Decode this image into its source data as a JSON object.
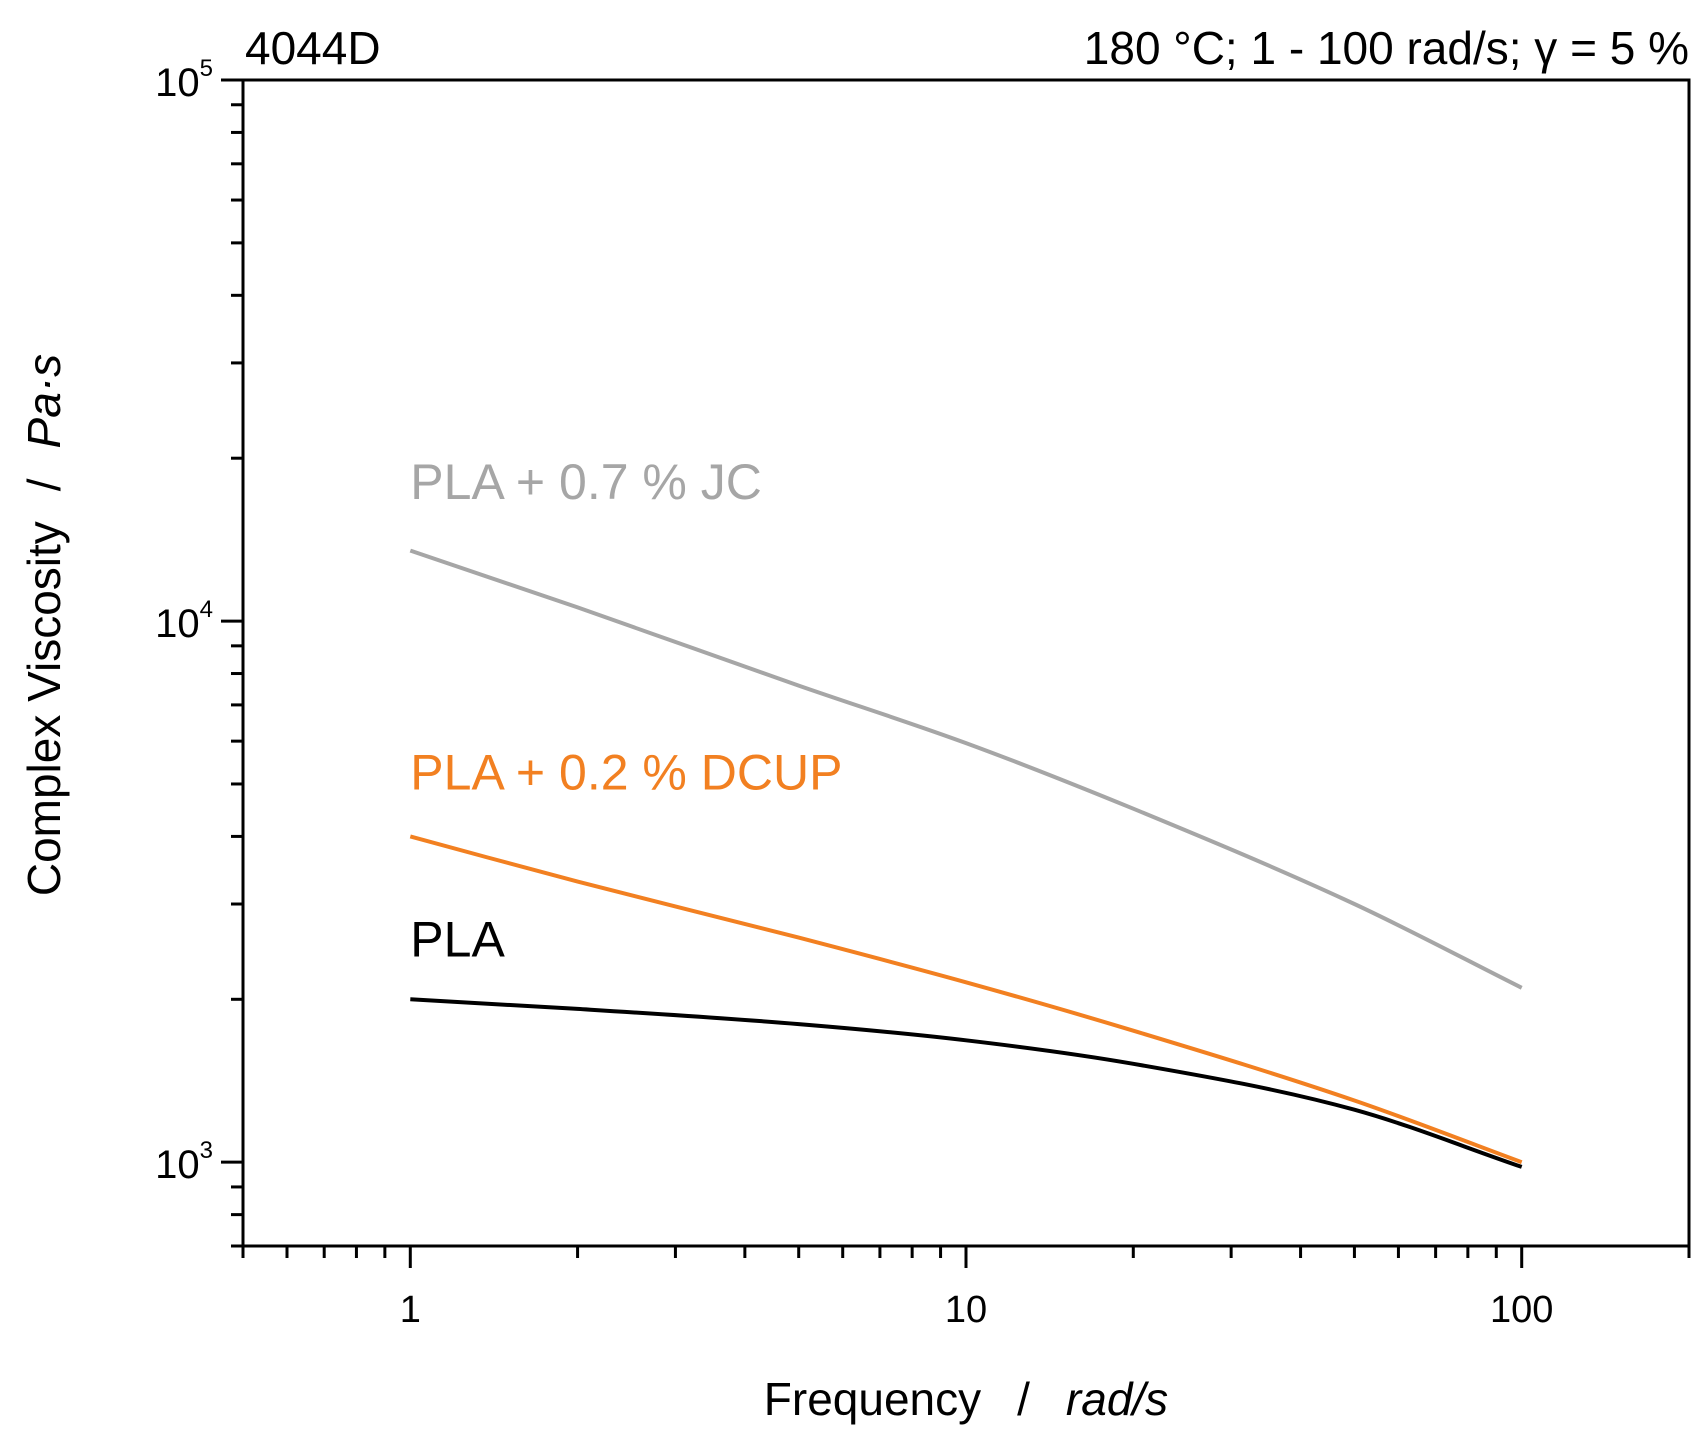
{
  "chart_data": {
    "type": "line",
    "title_left": "4044D",
    "title_right": "180 °C; 1 - 100 rad/s; γ = 5 %",
    "x_scale": "log",
    "y_scale": "log",
    "xlim": [
      0.5,
      200
    ],
    "ylim": [
      700,
      100000
    ],
    "xlabel": {
      "main": "Frequency",
      "sep": "/",
      "unit": "rad/s"
    },
    "ylabel": {
      "main": "Complex Viscosity",
      "sep": "/",
      "unit": "Pa·s"
    },
    "x_ticks": [
      {
        "value": 1,
        "label": "1"
      },
      {
        "value": 10,
        "label": "10"
      },
      {
        "value": 100,
        "label": "100"
      }
    ],
    "y_ticks": [
      {
        "value": 1000,
        "base": "10",
        "exp": "3"
      },
      {
        "value": 10000,
        "base": "10",
        "exp": "4"
      },
      {
        "value": 100000,
        "base": "10",
        "exp": "5"
      }
    ],
    "series": [
      {
        "name": "PLA + 0.7 % JC",
        "color": "#a6a6a6",
        "x": [
          1,
          2,
          5,
          10,
          20,
          50,
          100
        ],
        "y": [
          13500,
          10600,
          7600,
          5950,
          4500,
          3000,
          2100
        ],
        "label_at": [
          1,
          16800
        ]
      },
      {
        "name": "PLA + 0.2 % DCUP",
        "color": "#f28021",
        "x": [
          1,
          2,
          5,
          10,
          20,
          50,
          100
        ],
        "y": [
          4000,
          3300,
          2600,
          2150,
          1750,
          1300,
          1000
        ],
        "label_at": [
          1,
          4880
        ]
      },
      {
        "name": "PLA",
        "color": "#000000",
        "x": [
          1,
          2,
          5,
          10,
          20,
          50,
          100
        ],
        "y": [
          2000,
          1920,
          1800,
          1680,
          1520,
          1250,
          980
        ],
        "label_at": [
          1,
          2400
        ]
      }
    ]
  }
}
